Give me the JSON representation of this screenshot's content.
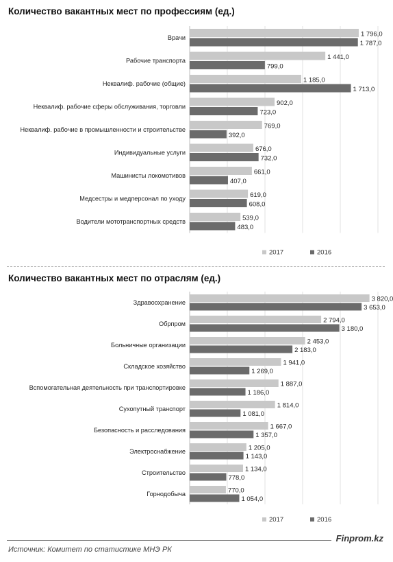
{
  "chart_data": [
    {
      "type": "bar",
      "orientation": "horizontal",
      "title": "Количество вакантных мест по профессиям (ед.)",
      "categories": [
        "Врачи",
        "Рабочие транспорта",
        "Неквалиф. рабочие (общие)",
        "Неквалиф. рабочие сферы обслуживания, торговли",
        "Неквалиф. рабочие в промышленности и строительстве",
        "Индивидуальные услуги",
        "Машинисты локомотивов",
        "Медсестры и медперсонал по уходу",
        "Водители мототранспортных средств"
      ],
      "series": [
        {
          "name": "2017",
          "color": "#c8c8c8",
          "values": [
            1796,
            1441,
            1185,
            902,
            769,
            676,
            661,
            619,
            539
          ],
          "labels": [
            "1 796,0",
            "1 441,0",
            "1 185,0",
            "902,0",
            "769,0",
            "676,0",
            "661,0",
            "619,0",
            "539,0"
          ]
        },
        {
          "name": "2016",
          "color": "#6b6b6b",
          "values": [
            1787,
            799,
            1713,
            723,
            392,
            732,
            407,
            608,
            483
          ],
          "labels": [
            "1 787,0",
            "799,0",
            "1 713,0",
            "723,0",
            "392,0",
            "732,0",
            "407,0",
            "608,0",
            "483,0"
          ]
        }
      ],
      "xlim": [
        0,
        2000
      ],
      "grid": true,
      "legend": "bottom-right"
    },
    {
      "type": "bar",
      "orientation": "horizontal",
      "title": "Количество вакантных мест по отраслям (ед.)",
      "categories": [
        "Здравоохранение",
        "Обрпром",
        "Больничные организации",
        "Складское хозяйство",
        "Вспомогательная деятельность при транспортировке",
        "Сухопутный транспорт",
        "Безопасность и расследования",
        "Электроснабжение",
        "Строительство",
        "Горнодобыча"
      ],
      "series": [
        {
          "name": "2017",
          "color": "#c8c8c8",
          "values": [
            3820,
            2794,
            2453,
            1941,
            1887,
            1814,
            1667,
            1205,
            1134,
            770
          ],
          "labels": [
            "3 820,0",
            "2 794,0",
            "2 453,0",
            "1 941,0",
            "1 887,0",
            "1 814,0",
            "1 667,0",
            "1 205,0",
            "1 134,0",
            "770,0"
          ]
        },
        {
          "name": "2016",
          "color": "#6b6b6b",
          "values": [
            3653,
            3180,
            2183,
            1269,
            1186,
            1081,
            1357,
            1143,
            778,
            1054
          ],
          "labels": [
            "3 653,0",
            "3 180,0",
            "2 183,0",
            "1 269,0",
            "1 186,0",
            "1 081,0",
            "1 357,0",
            "1 143,0",
            "778,0",
            "1 054,0"
          ]
        }
      ],
      "xlim": [
        0,
        4000
      ],
      "grid": true,
      "legend": "bottom-right"
    }
  ],
  "footer": {
    "brand": "Finprom.kz",
    "source": "Источник:  Комитет по статистике МНЭ РК"
  }
}
